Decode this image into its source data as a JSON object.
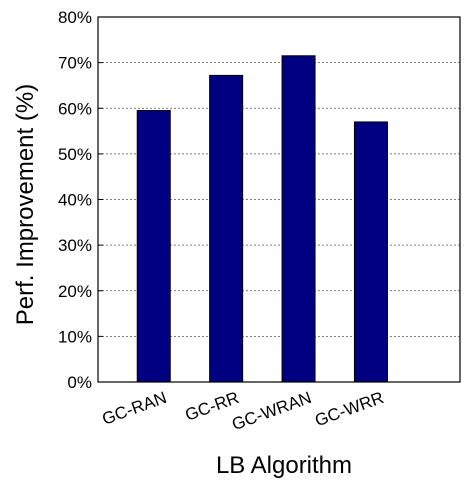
{
  "chart_data": {
    "type": "bar",
    "title": "",
    "xlabel": "LB Algorithm",
    "ylabel": "Perf. Improvement (%)",
    "categories": [
      "GC-RAN",
      "GC-RR",
      "GC-WRAN",
      "GC-WRR"
    ],
    "values": [
      59.5,
      67.2,
      71.5,
      57.0
    ],
    "ylim": [
      0,
      80
    ],
    "yticks": [
      0,
      10,
      20,
      30,
      40,
      50,
      60,
      70,
      80
    ],
    "ytick_labels": [
      "0%",
      "10%",
      "20%",
      "30%",
      "40%",
      "50%",
      "60%",
      "70%",
      "80%"
    ],
    "grid": true,
    "bar_color": "#000080"
  }
}
